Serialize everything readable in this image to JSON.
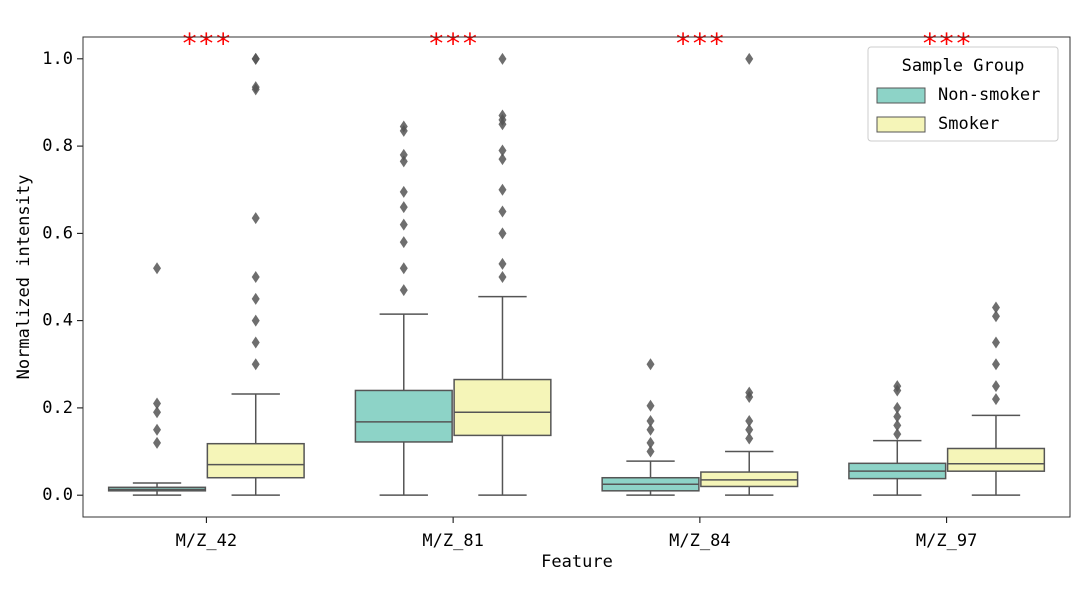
{
  "chart_data": {
    "type": "box",
    "xlabel": "Feature",
    "ylabel": "Normalized intensity",
    "categories": [
      "M/Z_42",
      "M/Z_81",
      "M/Z_84",
      "M/Z_97"
    ],
    "annotations": [
      "***",
      "***",
      "***",
      "***"
    ],
    "ylim": [
      -0.05,
      1.05
    ],
    "yticks": [
      {
        "value": 0,
        "label": "0.0"
      },
      0.2,
      0.4,
      0.6,
      0.8,
      {
        "value": 1,
        "label": "1.0"
      }
    ],
    "legend_title": "Sample Group",
    "legend": "upper right",
    "series": [
      {
        "name": "Non-smoker",
        "color": "#8dd3c7",
        "boxes": [
          {
            "whislo": 0,
            "q1": 0.01,
            "med": 0.013,
            "q3": 0.018,
            "whishi": 0.028,
            "fliers": [
              0.52,
              0.21,
              0.19,
              0.15,
              0.12
            ]
          },
          {
            "whislo": 0,
            "q1": 0.122,
            "med": 0.168,
            "q3": 0.24,
            "whishi": 0.415,
            "fliers": [
              0.845,
              0.835,
              0.78,
              0.765,
              0.695,
              0.66,
              0.62,
              0.58,
              0.52,
              0.47
            ]
          },
          {
            "whislo": 0,
            "q1": 0.01,
            "med": 0.025,
            "q3": 0.04,
            "whishi": 0.078,
            "fliers": [
              0.3,
              0.205,
              0.17,
              0.15,
              0.12,
              0.1
            ]
          },
          {
            "whislo": 0,
            "q1": 0.038,
            "med": 0.055,
            "q3": 0.073,
            "whishi": 0.125,
            "fliers": [
              0.25,
              0.24,
              0.2,
              0.18,
              0.16,
              0.14
            ]
          }
        ]
      },
      {
        "name": "Smoker",
        "color": "#f5f5b8",
        "boxes": [
          {
            "whislo": 0,
            "q1": 0.04,
            "med": 0.07,
            "q3": 0.118,
            "whishi": 0.232,
            "fliers": [
              1.0,
              1.0,
              0.935,
              0.93,
              0.635,
              0.5,
              0.45,
              0.4,
              0.35,
              0.3
            ]
          },
          {
            "whislo": 0,
            "q1": 0.137,
            "med": 0.19,
            "q3": 0.265,
            "whishi": 0.455,
            "fliers": [
              1.0,
              0.87,
              0.86,
              0.85,
              0.79,
              0.77,
              0.7,
              0.65,
              0.6,
              0.53,
              0.5
            ]
          },
          {
            "whislo": 0,
            "q1": 0.02,
            "med": 0.035,
            "q3": 0.053,
            "whishi": 0.1,
            "fliers": [
              1.0,
              0.235,
              0.225,
              0.17,
              0.15,
              0.13
            ]
          },
          {
            "whislo": 0,
            "q1": 0.055,
            "med": 0.072,
            "q3": 0.107,
            "whishi": 0.183,
            "fliers": [
              0.43,
              0.41,
              0.35,
              0.3,
              0.25,
              0.22
            ]
          }
        ]
      }
    ]
  }
}
